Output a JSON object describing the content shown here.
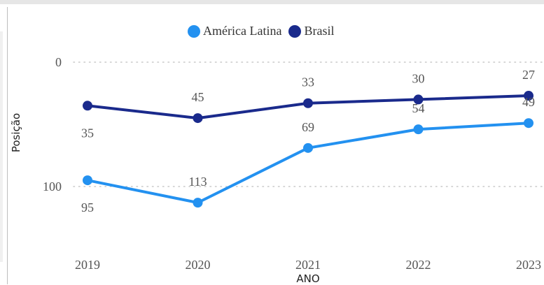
{
  "chart_data": {
    "type": "line",
    "categories": [
      "2019",
      "2020",
      "2021",
      "2022",
      "2023"
    ],
    "series": [
      {
        "name": "América Latina",
        "color": "#2391f0",
        "values": [
          95,
          113,
          69,
          54,
          49
        ]
      },
      {
        "name": "Brasil",
        "color": "#1a2a8c",
        "values": [
          35,
          45,
          33,
          30,
          27
        ]
      }
    ],
    "xlabel": "ANO",
    "ylabel": "Posição",
    "ylim": [
      0,
      100
    ],
    "yticks": [
      "0",
      "100"
    ],
    "y_reversed": true,
    "grid": true,
    "legend_position": "top-center"
  }
}
